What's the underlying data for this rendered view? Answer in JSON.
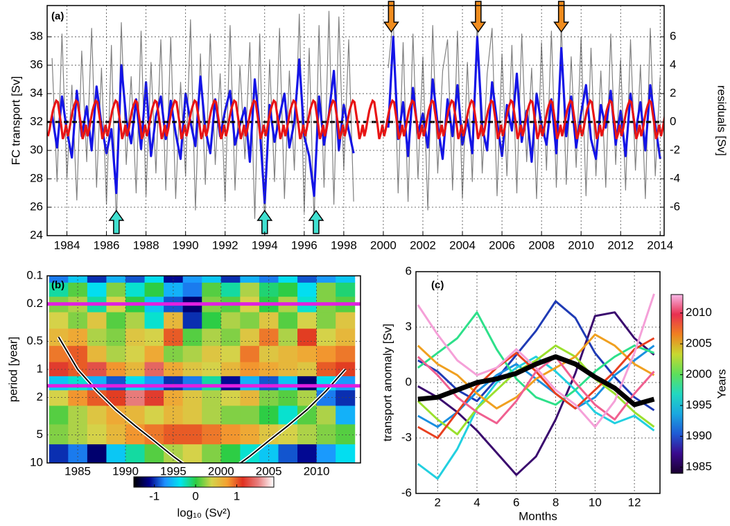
{
  "chart_data": [
    {
      "type": "line",
      "panel_label": "(a)",
      "ylabel": "FC transport [Sv]",
      "y2label": "residuals [Sv]",
      "xlim": [
        1983,
        2014.2
      ],
      "ylim": [
        24,
        40.2
      ],
      "y2lim": [
        -8,
        8.2
      ],
      "xticks": [
        1984,
        1986,
        1988,
        1990,
        1992,
        1994,
        1996,
        1998,
        2000,
        2002,
        2004,
        2006,
        2008,
        2010,
        2012,
        2014
      ],
      "yticks": [
        24,
        26,
        28,
        30,
        32,
        34,
        36,
        38
      ],
      "y2ticks": [
        -6,
        -4,
        -2,
        0,
        2,
        4,
        6
      ],
      "grid": true,
      "x": [
        1983.25,
        1983.5,
        1983.75,
        1984,
        1984.25,
        1984.5,
        1984.75,
        1985,
        1985.25,
        1985.5,
        1985.75,
        1986,
        1986.25,
        1986.5,
        1986.75,
        1987,
        1987.25,
        1987.5,
        1987.75,
        1988,
        1988.25,
        1988.5,
        1988.75,
        1989,
        1989.25,
        1989.5,
        1989.75,
        1990,
        1990.25,
        1990.5,
        1990.75,
        1991,
        1991.25,
        1991.5,
        1991.75,
        1992,
        1992.25,
        1992.5,
        1992.75,
        1993,
        1993.25,
        1993.5,
        1993.75,
        1994,
        1994.25,
        1994.5,
        1994.75,
        1995,
        1995.25,
        1995.5,
        1995.75,
        1996,
        1996.25,
        1996.5,
        1996.75,
        1997,
        1997.25,
        1997.5,
        1997.75,
        1998,
        1998.25,
        1998.5,
        1998.75,
        1999,
        1999.25,
        1999.5,
        1999.75,
        2000,
        2000.25,
        2000.5,
        2000.75,
        2001,
        2001.25,
        2001.5,
        2001.75,
        2002,
        2002.25,
        2002.5,
        2002.75,
        2003,
        2003.25,
        2003.5,
        2003.75,
        2004,
        2004.25,
        2004.5,
        2004.75,
        2005,
        2005.25,
        2005.5,
        2005.75,
        2006,
        2006.25,
        2006.5,
        2006.75,
        2007,
        2007.25,
        2007.5,
        2007.75,
        2008,
        2008.25,
        2008.5,
        2008.75,
        2009,
        2009.25,
        2009.5,
        2009.75,
        2010,
        2010.25,
        2010.5,
        2010.75,
        2011,
        2011.25,
        2011.5,
        2011.75,
        2012,
        2012.25,
        2012.5,
        2012.75,
        2013,
        2013.25,
        2013.5,
        2013.75,
        2014
      ],
      "series": [
        {
          "color": "#808080",
          "values": [
            36.5,
            27.8,
            38.2,
            28.0,
            34.6,
            26.5,
            37.0,
            29.2,
            38.6,
            27.4,
            35.8,
            26.2,
            37.4,
            24.6,
            39.0,
            29.0,
            35.2,
            27.0,
            38.4,
            26.8,
            36.2,
            28.4,
            37.8,
            27.2,
            38.0,
            26.6,
            34.8,
            28.2,
            39.2,
            25.8,
            36.8,
            27.6,
            38.2,
            29.0,
            35.4,
            26.4,
            38.8,
            27.2,
            36.0,
            29.4,
            37.6,
            25.2,
            38.2,
            24.4,
            36.4,
            27.8,
            38.6,
            26.6,
            35.6,
            28.6,
            39.6,
            25.6,
            37.2,
            24.8,
            38.8,
            27.4,
            39.8,
            26.2,
            39.4,
            28.6,
            37.8,
            26.4,
            null,
            null,
            null,
            null,
            null,
            null,
            35.8,
            39.4,
            27.0,
            37.6,
            26.4,
            38.2,
            28.0,
            36.6,
            25.8,
            38.8,
            28.4,
            35.6,
            37.8,
            27.2,
            38.4,
            26.6,
            36.2,
            27.8,
            39.2,
            28.4,
            35.4,
            38.6,
            26.8,
            36.8,
            28.2,
            37.4,
            27.0,
            38.2,
            29.2,
            35.8,
            26.6,
            37.6,
            28.6,
            38.4,
            27.4,
            39.0,
            27.6,
            36.6,
            28.8,
            38.0,
            26.8,
            37.2,
            28.2,
            35.6,
            27.4,
            38.2,
            29.0,
            36.4,
            27.2,
            37.8,
            28.6,
            36.0,
            26.6,
            38.6,
            28.2,
            35.2
          ]
        },
        {
          "color": "#1414e6",
          "values": [
            32.5,
            30.2,
            33.8,
            31.4,
            29.5,
            34.2,
            31.0,
            33.1,
            30.0,
            34.5,
            31.8,
            29.8,
            31.5,
            27.0,
            36.0,
            32.2,
            30.5,
            33.6,
            30.1,
            34.8,
            29.6,
            32.4,
            33.8,
            30.8,
            33.5,
            31.2,
            29.4,
            34.0,
            32.0,
            30.3,
            35.2,
            31.5,
            29.8,
            33.6,
            31.0,
            32.8,
            34.2,
            30.4,
            31.8,
            33.0,
            29.2,
            35.0,
            31.6,
            26.3,
            33.2,
            30.6,
            32.4,
            34.0,
            30.2,
            32.0,
            36.4,
            31.0,
            29.6,
            26.8,
            33.8,
            30.4,
            32.6,
            35.6,
            30.0,
            33.2,
            31.4,
            29.8,
            null,
            null,
            null,
            null,
            null,
            null,
            31.6,
            38.0,
            30.8,
            33.4,
            29.6,
            34.4,
            31.2,
            32.6,
            30.2,
            35.0,
            31.8,
            29.4,
            33.6,
            31.0,
            34.6,
            30.4,
            32.2,
            29.8,
            38.0,
            31.6,
            30.0,
            34.8,
            32.0,
            29.6,
            33.2,
            31.4,
            35.4,
            30.6,
            32.8,
            29.2,
            34.0,
            31.8,
            30.4,
            33.6,
            29.8,
            37.2,
            31.0,
            33.8,
            30.2,
            32.6,
            34.6,
            30.8,
            29.4,
            33.2,
            31.6,
            34.2,
            30.4,
            32.8,
            29.6,
            34.0,
            31.2,
            33.4,
            30.0,
            34.6,
            31.8,
            29.4
          ]
        }
      ],
      "seasonal_cycle": {
        "color": "#e81414",
        "values": [
          31.0,
          31.5,
          32.2,
          32.8,
          33.2,
          33.5,
          33.4,
          32.6,
          31.8,
          30.8,
          31.2,
          31.8
        ]
      },
      "mean_line": 32,
      "low_events": [
        1986.5,
        1994.0,
        1996.6
      ],
      "low_event_color": "#40e0d0",
      "high_events": [
        2000.4,
        2004.8,
        2009.0
      ],
      "high_event_color": "#f08c1e"
    },
    {
      "type": "heatmap",
      "panel_label": "(b)",
      "ylabel": "period [year]",
      "xlim": [
        1981.8,
        2014.6
      ],
      "ylim": [
        0.1,
        10
      ],
      "log_y": true,
      "y_inverted": true,
      "grid": true,
      "xticks": [
        1985,
        1990,
        1995,
        2000,
        2005,
        2010
      ],
      "yticks": [
        0.1,
        0.2,
        0.5,
        1,
        2,
        5,
        10
      ],
      "x": [
        1983,
        1985,
        1987,
        1989,
        1991,
        1993,
        1995,
        1997,
        1999,
        2001,
        2003,
        2005,
        2007,
        2009,
        2011,
        2013
      ],
      "periods": [
        0.1,
        0.14,
        0.2,
        0.3,
        0.45,
        0.7,
        1,
        1.4,
        2,
        3,
        5,
        8
      ],
      "z": [
        [
          -0.8,
          -0.5,
          -1.0,
          -0.6,
          -0.9,
          -0.4,
          -1.1,
          -0.7,
          -0.5,
          -1.0,
          -0.6,
          -0.8,
          -0.4,
          -0.9,
          -0.7,
          -0.5
        ],
        [
          -0.2,
          0.1,
          -0.4,
          0.2,
          -0.3,
          0.0,
          -0.6,
          -0.8,
          0.1,
          -0.2,
          0.3,
          -0.1,
          0.0,
          -0.4,
          0.2,
          -0.1
        ],
        [
          0.2,
          0.3,
          -0.2,
          0.4,
          0.0,
          -0.5,
          -0.9,
          -1.2,
          0.2,
          0.1,
          0.4,
          0.0,
          0.3,
          -0.3,
          0.2,
          0.1
        ],
        [
          0.4,
          0.2,
          0.5,
          0.1,
          0.3,
          -0.3,
          0.6,
          -1.0,
          0.0,
          0.3,
          0.2,
          0.5,
          0.1,
          0.4,
          0.2,
          0.5
        ],
        [
          0.6,
          0.7,
          0.3,
          0.2,
          0.5,
          0.4,
          1.0,
          0.1,
          0.3,
          0.2,
          0.5,
          0.9,
          0.3,
          1.1,
          0.4,
          0.6
        ],
        [
          0.9,
          1.0,
          0.6,
          0.3,
          0.4,
          0.7,
          0.2,
          0.3,
          0.5,
          0.4,
          0.9,
          0.5,
          0.6,
          0.7,
          0.8,
          0.9
        ],
        [
          1.2,
          1.0,
          1.3,
          0.8,
          0.6,
          1.4,
          0.7,
          0.5,
          0.4,
          0.6,
          0.8,
          0.7,
          0.6,
          0.5,
          1.0,
          1.1
        ],
        [
          -0.5,
          -0.3,
          -0.6,
          -0.9,
          -0.4,
          -0.7,
          -1.0,
          -0.8,
          -0.2,
          -1.1,
          -0.6,
          -0.9,
          -0.5,
          -1.2,
          -0.4,
          -0.7
        ],
        [
          0.4,
          0.8,
          1.0,
          1.1,
          1.5,
          1.2,
          0.7,
          0.5,
          0.3,
          0.4,
          0.6,
          0.2,
          0.1,
          0.3,
          -0.8,
          -1.0
        ],
        [
          0.1,
          0.3,
          0.5,
          0.7,
          0.6,
          0.4,
          0.6,
          0.5,
          0.3,
          0.2,
          0.2,
          0.0,
          -0.3,
          0.1,
          0.3,
          -0.6
        ],
        [
          0.2,
          0.3,
          0.4,
          0.6,
          0.8,
          0.9,
          1.0,
          1.0,
          0.9,
          0.8,
          0.7,
          0.5,
          0.4,
          0.3,
          0.2,
          0.1
        ],
        [
          -1.0,
          -0.8,
          -1.2,
          -0.5,
          -0.2,
          0.1,
          0.3,
          0.4,
          0.2,
          0.0,
          -0.3,
          -0.5,
          -0.9,
          -1.1,
          -0.7,
          -0.4
        ]
      ],
      "coi": [
        0.45,
        1.0,
        1.7,
        2.7,
        4.0,
        5.8,
        8.5,
        12,
        12,
        12,
        8.5,
        5.8,
        4.0,
        2.7,
        1.7,
        1.0
      ],
      "marked_periods": [
        0.2,
        1.5
      ],
      "marked_color": "#e020e0",
      "colorbar": {
        "clim": [
          -1.5,
          1.9
        ],
        "ticks": [
          -1,
          0,
          1
        ],
        "label": "log₁₀ (Sv²)",
        "colormap": [
          "#000000",
          "#00008b",
          "#1e90ff",
          "#00e5ee",
          "#2ecc40",
          "#d4d44a",
          "#f4a030",
          "#e03020",
          "#e88080",
          "#ffffff"
        ]
      }
    },
    {
      "type": "line",
      "panel_label": "(c)",
      "ylabel": "transport anomaly [Sv]",
      "xlabel": "Months",
      "xlim": [
        0.9,
        13.3
      ],
      "ylim": [
        -6,
        6
      ],
      "xticks": [
        2,
        4,
        6,
        8,
        10,
        12
      ],
      "yticks": [
        -6,
        -3,
        0,
        3,
        6
      ],
      "grid": true,
      "x": [
        1,
        2,
        3,
        4,
        5,
        6,
        7,
        8,
        9,
        10,
        11,
        12,
        13
      ],
      "series": [
        {
          "color": "#3a0a6e",
          "values": [
            -0.2,
            -0.8,
            -1.6,
            -2.6,
            -3.8,
            -5.0,
            -4.0,
            -2.0,
            0.5,
            3.6,
            3.8,
            2.4,
            1.5
          ]
        },
        {
          "color": "#1f3bb5",
          "values": [
            1.2,
            0.6,
            -0.4,
            -1.0,
            0.2,
            1.5,
            2.8,
            4.4,
            3.5,
            1.6,
            0.3,
            -0.8,
            -1.5
          ]
        },
        {
          "color": "#1a8fe0",
          "values": [
            -1.8,
            -2.4,
            -1.6,
            -0.5,
            0.4,
            1.0,
            0.2,
            -0.6,
            -1.4,
            -0.8,
            0.4,
            1.2,
            2.0
          ]
        },
        {
          "color": "#22d0e0",
          "values": [
            -4.4,
            -5.2,
            -3.6,
            -1.4,
            0.0,
            0.8,
            1.4,
            0.6,
            -0.4,
            -1.6,
            -2.2,
            -1.8,
            -2.6
          ]
        },
        {
          "color": "#2ee08a",
          "values": [
            0.8,
            1.6,
            2.4,
            3.8,
            1.8,
            0.2,
            -0.8,
            -1.2,
            -0.4,
            0.6,
            1.4,
            2.0,
            1.6
          ]
        },
        {
          "color": "#9be02e",
          "values": [
            -1.0,
            -2.0,
            -2.8,
            -1.4,
            -0.4,
            0.6,
            1.2,
            2.0,
            1.4,
            0.2,
            -0.6,
            -1.6,
            -2.4
          ]
        },
        {
          "color": "#f0a020",
          "values": [
            2.0,
            1.0,
            0.4,
            -0.6,
            -1.4,
            -0.8,
            0.2,
            0.8,
            1.4,
            2.6,
            2.0,
            1.0,
            0.4
          ]
        },
        {
          "color": "#e84020",
          "values": [
            -2.4,
            -3.0,
            -1.6,
            -0.2,
            0.8,
            1.6,
            0.6,
            -0.6,
            -1.4,
            -0.4,
            0.6,
            1.8,
            2.4
          ]
        },
        {
          "color": "#f06090",
          "values": [
            1.4,
            0.4,
            -0.8,
            -1.6,
            -2.2,
            -1.0,
            0.6,
            1.4,
            0.0,
            -1.2,
            -2.0,
            -0.6,
            0.6
          ]
        },
        {
          "color": "#f5a0d8",
          "values": [
            4.2,
            2.6,
            1.2,
            0.4,
            0.8,
            1.8,
            0.8,
            -0.4,
            -1.2,
            -2.4,
            -1.0,
            1.6,
            4.8
          ]
        }
      ],
      "mean": {
        "color": "#000000",
        "values": [
          -0.9,
          -0.8,
          -0.4,
          0.0,
          0.2,
          0.5,
          1.0,
          1.4,
          1.0,
          0.3,
          -0.3,
          -1.2,
          -0.9
        ]
      },
      "colorbar": {
        "clim": [
          1984,
          2013
        ],
        "ticks": [
          1985,
          1990,
          1995,
          2000,
          2005,
          2010
        ],
        "label": "Years",
        "colormap": [
          "#1a0030",
          "#3a0a8e",
          "#1f5bd5",
          "#1aa8e0",
          "#22d8c0",
          "#5ee05a",
          "#c8d830",
          "#f08020",
          "#e83050",
          "#f8b8e8"
        ]
      }
    }
  ]
}
